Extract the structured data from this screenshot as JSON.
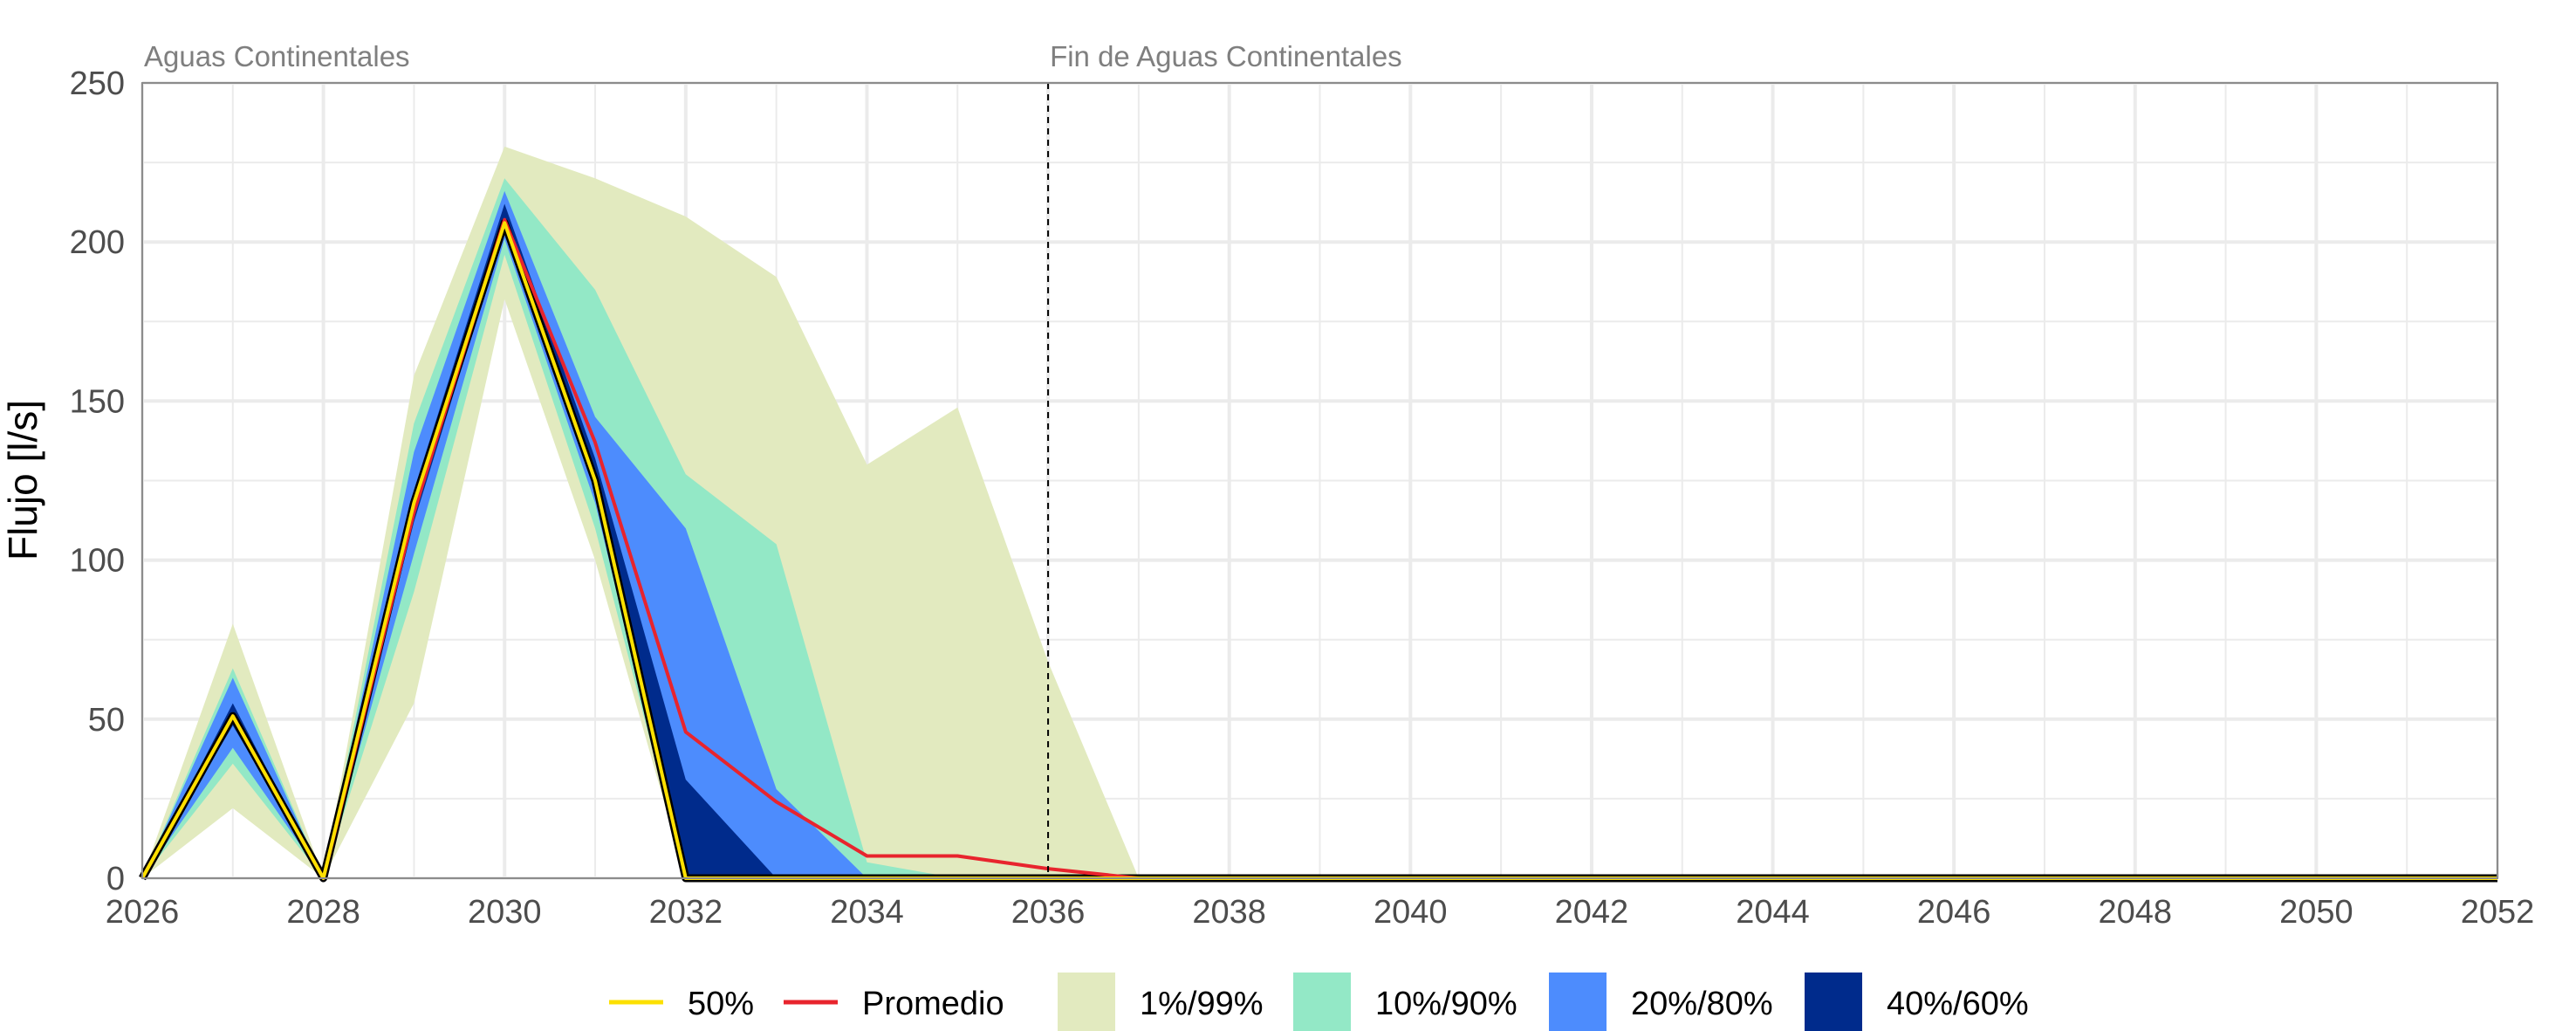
{
  "chart_data": {
    "type": "area",
    "title": "",
    "xlabel": "",
    "ylabel": "Flujo [l/s]",
    "xlim": [
      2026,
      2052
    ],
    "ylim": [
      0,
      250
    ],
    "x_ticks": [
      2026,
      2028,
      2030,
      2032,
      2034,
      2036,
      2038,
      2040,
      2042,
      2044,
      2046,
      2048,
      2050,
      2052
    ],
    "y_ticks": [
      0,
      50,
      100,
      150,
      200,
      250
    ],
    "grid": true,
    "legend_position": "bottom",
    "x": [
      2026,
      2027,
      2028,
      2029,
      2030,
      2031,
      2032,
      2033,
      2034,
      2035,
      2036,
      2037,
      2038,
      2039,
      2040,
      2041,
      2042,
      2043,
      2044,
      2045,
      2046,
      2047,
      2048,
      2049,
      2050,
      2051,
      2052
    ],
    "bands": [
      {
        "name": "1%/99%",
        "color": "#e2eabf",
        "lower": [
          0,
          22,
          0,
          55,
          182,
          100,
          0,
          0,
          0,
          0,
          0,
          0,
          0,
          0,
          0,
          0,
          0,
          0,
          0,
          0,
          0,
          0,
          0,
          0,
          0,
          0,
          0
        ],
        "upper": [
          0,
          80,
          0,
          158,
          230,
          220,
          208,
          189,
          130,
          148,
          68,
          0,
          0,
          0,
          0,
          0,
          0,
          0,
          0,
          0,
          0,
          0,
          0,
          0,
          0,
          0,
          0
        ]
      },
      {
        "name": "10%/90%",
        "color": "#93e8c6",
        "lower": [
          0,
          36,
          0,
          90,
          196,
          110,
          0,
          0,
          0,
          0,
          0,
          0,
          0,
          0,
          0,
          0,
          0,
          0,
          0,
          0,
          0,
          0,
          0,
          0,
          0,
          0,
          0
        ],
        "upper": [
          0,
          66,
          0,
          143,
          220,
          185,
          127,
          105,
          5,
          0,
          0,
          0,
          0,
          0,
          0,
          0,
          0,
          0,
          0,
          0,
          0,
          0,
          0,
          0,
          0,
          0,
          0
        ]
      },
      {
        "name": "20%/80%",
        "color": "#4d8cfd",
        "lower": [
          0,
          41,
          0,
          102,
          201,
          118,
          0,
          0,
          0,
          0,
          0,
          0,
          0,
          0,
          0,
          0,
          0,
          0,
          0,
          0,
          0,
          0,
          0,
          0,
          0,
          0,
          0
        ],
        "upper": [
          0,
          63,
          0,
          134,
          216,
          145,
          110,
          28,
          0,
          0,
          0,
          0,
          0,
          0,
          0,
          0,
          0,
          0,
          0,
          0,
          0,
          0,
          0,
          0,
          0,
          0,
          0
        ]
      },
      {
        "name": "40%/60%",
        "color": "#002b8c",
        "lower": [
          0,
          48,
          0,
          112,
          204,
          122,
          0,
          0,
          0,
          0,
          0,
          0,
          0,
          0,
          0,
          0,
          0,
          0,
          0,
          0,
          0,
          0,
          0,
          0,
          0,
          0,
          0
        ],
        "upper": [
          0,
          55,
          0,
          122,
          212,
          132,
          31,
          0,
          0,
          0,
          0,
          0,
          0,
          0,
          0,
          0,
          0,
          0,
          0,
          0,
          0,
          0,
          0,
          0,
          0,
          0,
          0
        ]
      }
    ],
    "series": [
      {
        "name": "Promedio",
        "color": "#e8242d",
        "values": [
          0,
          51,
          0,
          115,
          207,
          137,
          46,
          24,
          7,
          7,
          3,
          0,
          0,
          0,
          0,
          0,
          0,
          0,
          0,
          0,
          0,
          0,
          0,
          0,
          0,
          0,
          0
        ]
      },
      {
        "name": "50%",
        "color": "#fce000",
        "values": [
          0,
          51,
          0,
          118,
          206,
          125,
          0,
          0,
          0,
          0,
          0,
          0,
          0,
          0,
          0,
          0,
          0,
          0,
          0,
          0,
          0,
          0,
          0,
          0,
          0,
          0,
          0
        ]
      }
    ],
    "annotations": [
      {
        "text": "Aguas Continentales",
        "x": 2026
      },
      {
        "text": "Fin de Aguas Continentales",
        "x": 2036,
        "line": "dashed"
      }
    ],
    "legend": [
      {
        "label": "50%",
        "kind": "line",
        "color": "#fce000"
      },
      {
        "label": "Promedio",
        "kind": "line",
        "color": "#e8242d"
      },
      {
        "label": "1%/99%",
        "kind": "fill",
        "color": "#e2eabf"
      },
      {
        "label": "10%/90%",
        "kind": "fill",
        "color": "#93e8c6"
      },
      {
        "label": "20%/80%",
        "kind": "fill",
        "color": "#4d8cfd"
      },
      {
        "label": "40%/60%",
        "kind": "fill",
        "color": "#002b8c"
      }
    ]
  }
}
